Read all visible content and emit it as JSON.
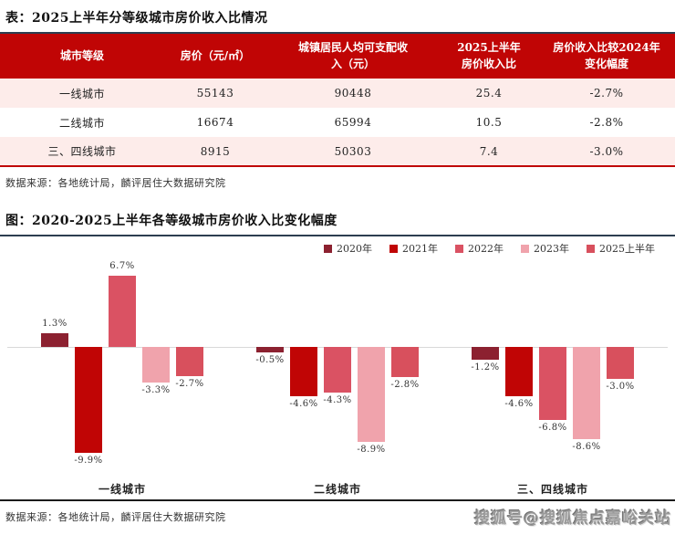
{
  "table_section": {
    "title": "表：2025上半年分等级城市房价收入比情况",
    "headers": [
      "城市等级",
      "房价（元/㎡）",
      "城镇居民人均可支配收\n入（元）",
      "2025上半年\n房价收入比",
      "房价收入比较2024年\n变化幅度"
    ],
    "rows": [
      [
        "一线城市",
        "55143",
        "90448",
        "25.4",
        "-2.7%"
      ],
      [
        "二线城市",
        "16674",
        "65994",
        "10.5",
        "-2.8%"
      ],
      [
        "三、四线城市",
        "8915",
        "50303",
        "7.4",
        "-3.0%"
      ]
    ],
    "source": "数据来源：各地统计局，麟评居住大数据研究院"
  },
  "chart_section": {
    "title": "图：2020-2025上半年各等级城市房价收入比变化幅度",
    "source": "数据来源：各地统计局，麟评居住大数据研究院"
  },
  "chart_data": {
    "type": "bar",
    "categories": [
      "一线城市",
      "二线城市",
      "三、四线城市"
    ],
    "series": [
      {
        "name": "2020年",
        "color": "#8c2130",
        "values": [
          1.3,
          -0.5,
          -1.2
        ]
      },
      {
        "name": "2021年",
        "color": "#c00505",
        "values": [
          -9.9,
          -4.6,
          -4.6
        ]
      },
      {
        "name": "2022年",
        "color": "#da5263",
        "values": [
          6.7,
          -4.3,
          -6.8
        ]
      },
      {
        "name": "2023年",
        "color": "#f0a3ac",
        "values": [
          -3.3,
          -8.9,
          -8.6
        ]
      },
      {
        "name": "2025上半年",
        "color": "#d8505d",
        "values": [
          -2.7,
          -2.8,
          -3.0
        ]
      }
    ],
    "unit": "%",
    "ylim": [
      -10.5,
      7.5
    ],
    "grid": false,
    "legend_position": "top-right",
    "data_label_format": "{value}%",
    "zero_line_color": "#d9d9d9"
  },
  "watermark": {
    "text": "搜狐号@搜狐焦点嘉峪关站"
  },
  "colors": {
    "header_bg": "#c00505",
    "row_alt_bg": "#fdecea",
    "divider_dark": "#2d3e50",
    "divider_black": "#1c1c1c"
  }
}
